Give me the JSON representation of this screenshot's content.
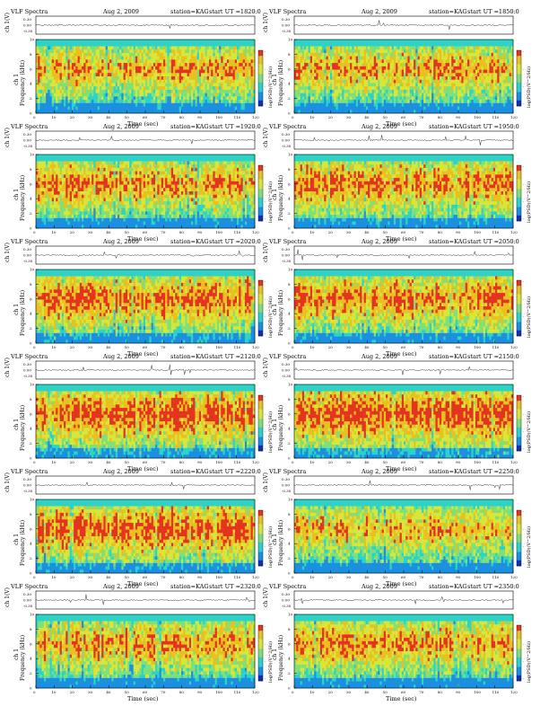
{
  "page_title": "",
  "colors": {
    "spectrogram_palette": [
      "#1030c0",
      "#1b8fe0",
      "#2bd3c8",
      "#7fe07a",
      "#d8e63a",
      "#e8c020",
      "#e4331f"
    ],
    "trace": "#333333",
    "axis": "#000000"
  },
  "chart_data": [
    {
      "type": "heatmap",
      "title": "VLF Spectra",
      "date": "Aug 2, 2009",
      "station": "station=KAG",
      "start": "start  UT =1820:0",
      "top_ylabel": "ch 1(V)",
      "top_yticks": [
        "0.30",
        "0.00",
        "-0.30"
      ],
      "ylabel": "Frequency  (kHz)",
      "ylabel2": "ch 1",
      "xlabel": "Time  (sec)",
      "xticks": [
        "0",
        "10",
        "20",
        "30",
        "40",
        "50",
        "60",
        "70",
        "80",
        "90",
        "100",
        "110",
        "120"
      ],
      "xlim": [
        0,
        120
      ],
      "yticks": [
        "0",
        "2",
        "4",
        "6",
        "8",
        "10"
      ],
      "ylim": [
        0,
        10
      ],
      "colorbar_label": "log(PSD)(V^2/Hz)",
      "colorbar_ticks": [
        "-",
        "-",
        "-",
        "-"
      ],
      "intensity": 0.62
    },
    {
      "type": "heatmap",
      "title": "VLF Spectra",
      "date": "Aug 2, 2009",
      "station": "station=KAG",
      "start": "start  UT =1850:0",
      "top_ylabel": "ch 1(V)",
      "top_yticks": [
        "0.30",
        "0.00",
        "-0.30"
      ],
      "ylabel": "Frequency  (kHz)",
      "ylabel2": "ch 1",
      "xlabel": "Time  (sec)",
      "xticks": [
        "0",
        "10",
        "20",
        "30",
        "40",
        "50",
        "60",
        "70",
        "80",
        "90",
        "100",
        "110",
        "120"
      ],
      "xlim": [
        0,
        120
      ],
      "yticks": [
        "0",
        "2",
        "4",
        "6",
        "8",
        "10"
      ],
      "ylim": [
        0,
        10
      ],
      "colorbar_label": "log(PSD)(V^2/Hz)",
      "colorbar_ticks": [
        "-",
        "-",
        "-",
        "-"
      ],
      "intensity": 0.6
    },
    {
      "type": "heatmap",
      "title": "VLF Spectra",
      "date": "Aug 2, 2009",
      "station": "station=KAG",
      "start": "start  UT =1920:0",
      "top_ylabel": "ch 1(V)",
      "top_yticks": [
        "0.30",
        "0.00",
        "-0.30"
      ],
      "ylabel": "Frequency  (kHz)",
      "ylabel2": "ch 1",
      "xlabel": "Time  (sec)",
      "xticks": [
        "0",
        "10",
        "20",
        "30",
        "40",
        "50",
        "60",
        "70",
        "80",
        "90",
        "100",
        "110",
        "120"
      ],
      "xlim": [
        0,
        120
      ],
      "yticks": [
        "0",
        "2",
        "4",
        "6",
        "8",
        "10"
      ],
      "ylim": [
        0,
        10
      ],
      "colorbar_label": "log(PSD)(V^2/Hz)",
      "colorbar_ticks": [
        "-",
        "-",
        "-",
        "-"
      ],
      "intensity": 0.66
    },
    {
      "type": "heatmap",
      "title": "VLF Spectra",
      "date": "Aug 2, 2009",
      "station": "station=KAG",
      "start": "start  UT =1950:0",
      "top_ylabel": "ch 1(V)",
      "top_yticks": [
        "0.30",
        "0.00",
        "-0.30"
      ],
      "ylabel": "Frequency  (kHz)",
      "ylabel2": "ch 1",
      "xlabel": "Time  (sec)",
      "xticks": [
        "0",
        "10",
        "20",
        "30",
        "40",
        "50",
        "60",
        "70",
        "80",
        "90",
        "100",
        "110",
        "120"
      ],
      "xlim": [
        0,
        120
      ],
      "yticks": [
        "0",
        "2",
        "4",
        "6",
        "8",
        "10"
      ],
      "ylim": [
        0,
        10
      ],
      "colorbar_label": "log(PSD)(V^2/Hz)",
      "colorbar_ticks": [
        "-",
        "-",
        "-",
        "-"
      ],
      "intensity": 0.7
    },
    {
      "type": "heatmap",
      "title": "VLF Spectra",
      "date": "Aug 2, 2009",
      "station": "station=KAG",
      "start": "start  UT =2020:0",
      "top_ylabel": "ch 1(V)",
      "top_yticks": [
        "0.30",
        "0.00",
        "-0.30"
      ],
      "ylabel": "Frequency  (kHz)",
      "ylabel2": "ch 1",
      "xlabel": "Time  (sec)",
      "xticks": [
        "0",
        "10",
        "20",
        "30",
        "40",
        "50",
        "60",
        "70",
        "80",
        "90",
        "100",
        "110",
        "120"
      ],
      "xlim": [
        0,
        120
      ],
      "yticks": [
        "0",
        "2",
        "4",
        "6",
        "8",
        "10"
      ],
      "ylim": [
        0,
        10
      ],
      "colorbar_label": "log(PSD)(V^2/Hz)",
      "colorbar_ticks": [
        "-",
        "-",
        "-",
        "-"
      ],
      "intensity": 0.74
    },
    {
      "type": "heatmap",
      "title": "VLF Spectra",
      "date": "Aug 2, 2009",
      "station": "station=KAG",
      "start": "start  UT =2050:0",
      "top_ylabel": "ch 1(V)",
      "top_yticks": [
        "0.30",
        "0.00",
        "-0.30"
      ],
      "ylabel": "Frequency  (kHz)",
      "ylabel2": "ch 1",
      "xlabel": "Time  (sec)",
      "xticks": [
        "0",
        "10",
        "20",
        "30",
        "40",
        "50",
        "60",
        "70",
        "80",
        "90",
        "100",
        "110",
        "120"
      ],
      "xlim": [
        0,
        120
      ],
      "yticks": [
        "0",
        "2",
        "4",
        "6",
        "8",
        "10"
      ],
      "ylim": [
        0,
        10
      ],
      "colorbar_label": "log(PSD)(V^2/Hz)",
      "colorbar_ticks": [
        "-",
        "-",
        "-",
        "-"
      ],
      "intensity": 0.72
    },
    {
      "type": "heatmap",
      "title": "VLF Spectra",
      "date": "Aug 2, 2009",
      "station": "station=KAG",
      "start": "start  UT =2120:0",
      "top_ylabel": "ch 1(V)",
      "top_yticks": [
        "0.30",
        "0.00",
        "-0.30"
      ],
      "ylabel": "Frequency  (kHz)",
      "ylabel2": "ch 1",
      "xlabel": "Time  (sec)",
      "xticks": [
        "0",
        "10",
        "20",
        "30",
        "40",
        "50",
        "60",
        "70",
        "80",
        "90",
        "100",
        "110",
        "120"
      ],
      "xlim": [
        0,
        120
      ],
      "yticks": [
        "0",
        "2",
        "4",
        "6",
        "8",
        "10"
      ],
      "ylim": [
        0,
        10
      ],
      "colorbar_label": "log(PSD)(V^2/Hz)",
      "colorbar_ticks": [
        "-",
        "-",
        "-",
        "-"
      ],
      "intensity": 0.82
    },
    {
      "type": "heatmap",
      "title": "VLF Spectra",
      "date": "Aug 2, 2009",
      "station": "station=KAG",
      "start": "start  UT =2150:0",
      "top_ylabel": "ch 1(V)",
      "top_yticks": [
        "0.30",
        "0.00",
        "-0.30"
      ],
      "ylabel": "Frequency  (kHz)",
      "ylabel2": "ch 1",
      "xlabel": "Time  (sec)",
      "xticks": [
        "0",
        "10",
        "20",
        "30",
        "40",
        "50",
        "60",
        "70",
        "80",
        "90",
        "100",
        "110",
        "120"
      ],
      "xlim": [
        0,
        120
      ],
      "yticks": [
        "0",
        "2",
        "4",
        "6",
        "8",
        "10"
      ],
      "ylim": [
        0,
        10
      ],
      "colorbar_label": "log(PSD)(V^2/Hz)",
      "colorbar_ticks": [
        "-",
        "-",
        "-",
        "-"
      ],
      "intensity": 0.84
    },
    {
      "type": "heatmap",
      "title": "VLF Spectra",
      "date": "Aug 2, 2009",
      "station": "station=KAG",
      "start": "start  UT =2220:0",
      "top_ylabel": "ch 1(V)",
      "top_yticks": [
        "0.30",
        "0.00",
        "-0.30"
      ],
      "ylabel": "Frequency  (kHz)",
      "ylabel2": "ch 1",
      "xlabel": "Time  (sec)",
      "xticks": [
        "0",
        "10",
        "20",
        "30",
        "40",
        "50",
        "60",
        "70",
        "80",
        "90",
        "100",
        "110",
        "120"
      ],
      "xlim": [
        0,
        120
      ],
      "yticks": [
        "0",
        "2",
        "4",
        "6",
        "8",
        "10"
      ],
      "ylim": [
        0,
        10
      ],
      "colorbar_label": "log(PSD)(V^2/Hz)",
      "colorbar_ticks": [
        "-",
        "-",
        "-",
        "-"
      ],
      "intensity": 0.78
    },
    {
      "type": "heatmap",
      "title": "VLF Spectra",
      "date": "Aug 2, 2009",
      "station": "station=KAG",
      "start": "start  UT =2250:0",
      "top_ylabel": "ch 1(V)",
      "top_yticks": [
        "0.30",
        "0.00",
        "-0.30"
      ],
      "ylabel": "Frequency  (kHz)",
      "ylabel2": "ch 1",
      "xlabel": "Time  (sec)",
      "xticks": [
        "0",
        "10",
        "20",
        "30",
        "40",
        "50",
        "60",
        "70",
        "80",
        "90",
        "100",
        "110",
        "120"
      ],
      "xlim": [
        0,
        120
      ],
      "yticks": [
        "0",
        "2",
        "4",
        "6",
        "8",
        "10"
      ],
      "ylim": [
        0,
        10
      ],
      "colorbar_label": "log(PSD)(V^2/Hz)",
      "colorbar_ticks": [
        "-",
        "-",
        "-",
        "-"
      ],
      "intensity": 0.56
    },
    {
      "type": "heatmap",
      "title": "VLF Spectra",
      "date": "Aug 2, 2009",
      "station": "station=KAG",
      "start": "start  UT =2320:0",
      "top_ylabel": "ch 1(V)",
      "top_yticks": [
        "0.30",
        "0.00",
        "-0.30"
      ],
      "ylabel": "Frequency  (kHz)",
      "ylabel2": "ch 1",
      "xlabel": "Time  (sec)",
      "xticks": [
        "0",
        "10",
        "20",
        "30",
        "40",
        "50",
        "60",
        "70",
        "80",
        "90",
        "100",
        "110",
        "120"
      ],
      "xlim": [
        0,
        120
      ],
      "yticks": [
        "0",
        "2",
        "4",
        "6",
        "8",
        "10"
      ],
      "ylim": [
        0,
        10
      ],
      "colorbar_label": "log(PSD)(V^2/Hz)",
      "colorbar_ticks": [
        "-",
        "-",
        "-",
        "-"
      ],
      "intensity": 0.62
    },
    {
      "type": "heatmap",
      "title": "VLF Spectra",
      "date": "Aug 2, 2009",
      "station": "station=KAG",
      "start": "start  UT =2350:0",
      "top_ylabel": "ch 1(V)",
      "top_yticks": [
        "0.30",
        "0.00",
        "-0.30"
      ],
      "ylabel": "Frequency  (kHz)",
      "ylabel2": "ch 1",
      "xlabel": "Time  (sec)",
      "xticks": [
        "0",
        "10",
        "20",
        "30",
        "40",
        "50",
        "60",
        "70",
        "80",
        "90",
        "100",
        "110",
        "120"
      ],
      "xlim": [
        0,
        120
      ],
      "yticks": [
        "0",
        "2",
        "4",
        "6",
        "8",
        "10"
      ],
      "ylim": [
        0,
        10
      ],
      "colorbar_label": "log(PSD)(V^2/Hz)",
      "colorbar_ticks": [
        "-",
        "-",
        "-",
        "-"
      ],
      "intensity": 0.66
    }
  ]
}
